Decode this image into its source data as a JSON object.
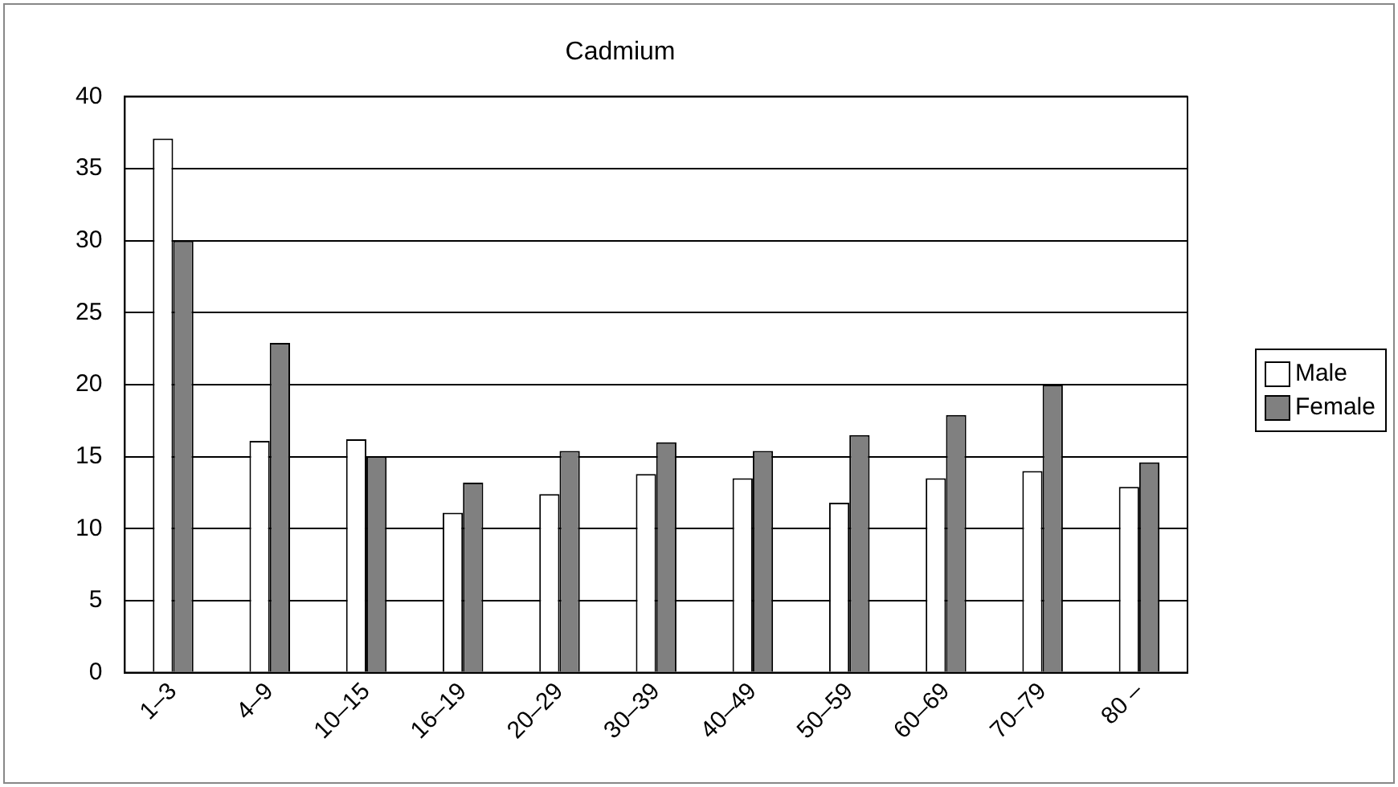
{
  "chart_data": {
    "type": "bar",
    "title": "Cadmium",
    "categories": [
      "1–3",
      "4–9",
      "10–15",
      "16–19",
      "20–29",
      "30–39",
      "40–49",
      "50–59",
      "60–69",
      "70–79",
      "80 –"
    ],
    "series": [
      {
        "name": "Male",
        "color": "#ffffff",
        "values": [
          37.1,
          16.1,
          16.2,
          11.1,
          12.4,
          13.8,
          13.5,
          11.8,
          13.5,
          14.0,
          12.9
        ]
      },
      {
        "name": "Female",
        "color": "#808080",
        "values": [
          30.0,
          22.9,
          15.0,
          13.2,
          15.4,
          16.0,
          15.4,
          16.5,
          17.9,
          20.0,
          14.6
        ]
      }
    ],
    "ylim": [
      0,
      40
    ],
    "yticks": [
      0,
      5,
      10,
      15,
      20,
      25,
      30,
      35,
      40
    ],
    "grid": "y",
    "legend": "right"
  }
}
